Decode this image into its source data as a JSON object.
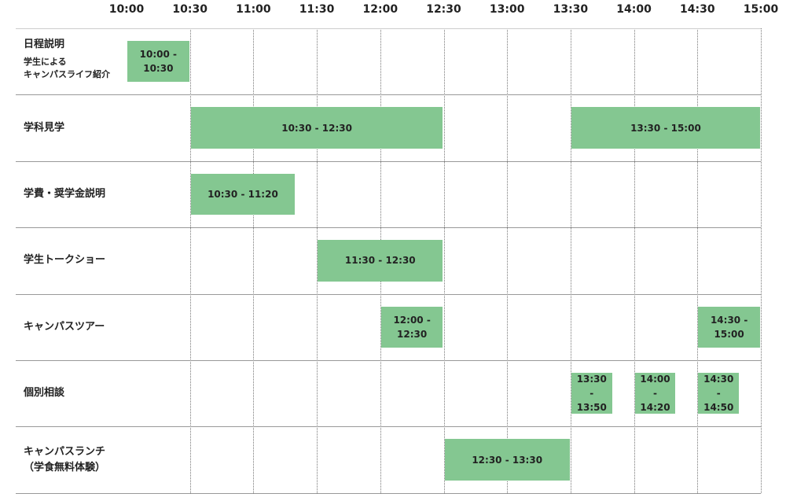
{
  "time_labels": [
    "10:00",
    "10:30",
    "11:00",
    "11:30",
    "12:00",
    "12:30",
    "13:00",
    "13:30",
    "14:00",
    "14:30",
    "15:00"
  ],
  "rows": [
    {
      "label": [
        "日程説明"
      ],
      "sublabel": [
        "学生による",
        "キャンパスライフ紹介"
      ],
      "blocks": [
        "10:00 - 10:30"
      ]
    },
    {
      "label": [
        "学科見学"
      ],
      "blocks": [
        "10:30 - 12:30",
        "13:30 - 15:00"
      ]
    },
    {
      "label": [
        "学費・奨学金説明"
      ],
      "blocks": [
        "10:30 - 11:20"
      ]
    },
    {
      "label": [
        "学生トークショー"
      ],
      "blocks": [
        "11:30 - 12:30"
      ]
    },
    {
      "label": [
        "キャンパスツアー"
      ],
      "blocks": [
        "12:00 - 12:30",
        "14:30 - 15:00"
      ]
    },
    {
      "label": [
        "個別相談"
      ],
      "blocks": [
        "13:30 - 13:50",
        "14:00 - 14:20",
        "14:30 - 14:50"
      ]
    },
    {
      "label": [
        "キャンパスランチ",
        "（学食無料体験）"
      ],
      "blocks": [
        "12:30 - 13:30"
      ]
    }
  ]
}
